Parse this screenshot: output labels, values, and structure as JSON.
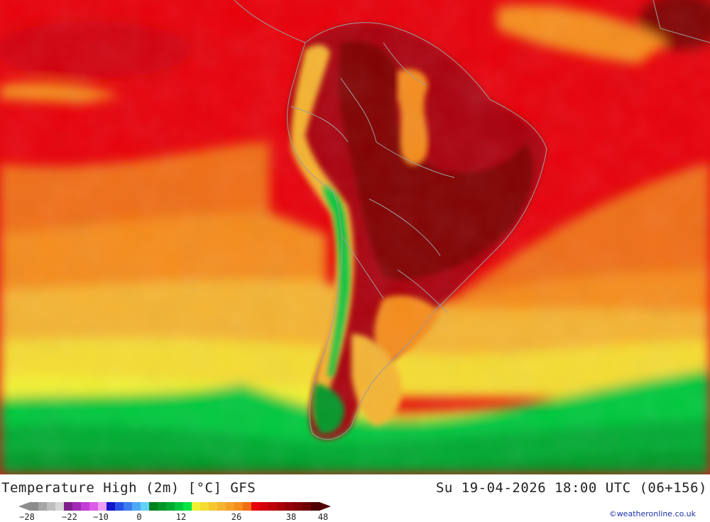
{
  "map": {
    "title": "Temperature High (2m) [°C] GFS",
    "valid_time": "Su 19-04-2026 18:00 UTC (06+156)",
    "credit": "©weatheronline.co.uk",
    "legend": {
      "tick_labels": [
        "-28",
        "-22",
        "-10",
        "0",
        "12",
        "26",
        "38",
        "48"
      ],
      "colors": [
        "#8c8c8c",
        "#a5a5a5",
        "#bebebe",
        "#d7d7d7",
        "#7f1f8c",
        "#a02ab4",
        "#c33dd6",
        "#dc5ae8",
        "#f09cf5",
        "#1414c8",
        "#2850e6",
        "#3c7cf0",
        "#50a8f5",
        "#64d2fa",
        "#00821e",
        "#009628",
        "#00aa32",
        "#00c83c",
        "#00e646",
        "#f0f032",
        "#f5dc32",
        "#f5c832",
        "#f5b432",
        "#f5a028",
        "#f58c1e",
        "#f06e14",
        "#e8000a",
        "#d2000a",
        "#be000a",
        "#aa0008",
        "#960008",
        "#820006",
        "#6e0004",
        "#500002"
      ]
    }
  }
}
